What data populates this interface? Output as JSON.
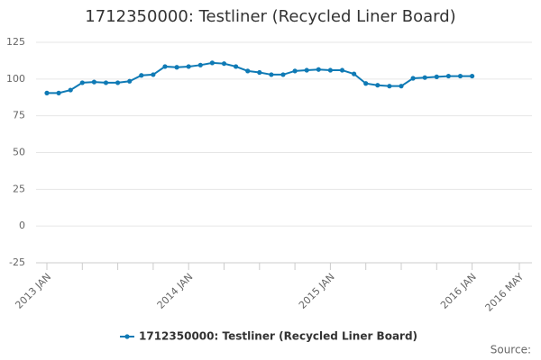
{
  "chart_data": {
    "type": "line",
    "title": "1712350000: Testliner (Recycled Liner Board)",
    "source": "Source:",
    "x": [
      "2013-01",
      "2013-02",
      "2013-03",
      "2013-04",
      "2013-05",
      "2013-06",
      "2013-07",
      "2013-08",
      "2013-09",
      "2013-10",
      "2013-11",
      "2013-12",
      "2014-01",
      "2014-02",
      "2014-03",
      "2014-04",
      "2014-05",
      "2014-06",
      "2014-07",
      "2014-08",
      "2014-09",
      "2014-10",
      "2014-11",
      "2014-12",
      "2015-01",
      "2015-02",
      "2015-03",
      "2015-04",
      "2015-05",
      "2015-06",
      "2015-07",
      "2015-08",
      "2015-09",
      "2015-10",
      "2015-11",
      "2015-12",
      "2016-01"
    ],
    "series": [
      {
        "name": "1712350000: Testliner (Recycled Liner Board)",
        "color": "#0f7ab5",
        "values": [
          90.5,
          90.5,
          92.5,
          97.5,
          98,
          97.5,
          97.5,
          98.5,
          102.5,
          103,
          108.5,
          108,
          108.5,
          109.5,
          111,
          110.5,
          108.5,
          105.5,
          104.5,
          103,
          103,
          105.5,
          106,
          106.5,
          106,
          106,
          103.5,
          97,
          95.8,
          95.2,
          95.2,
          100.5,
          101,
          101.5,
          102,
          102,
          102
        ]
      }
    ],
    "xlim": [
      "2013-01",
      "2016-05"
    ],
    "xticks": [
      {
        "value": "2013-01",
        "label": "2013 JAN"
      },
      {
        "value": "2013-04",
        "label": null
      },
      {
        "value": "2013-07",
        "label": null
      },
      {
        "value": "2013-10",
        "label": null
      },
      {
        "value": "2014-01",
        "label": "2014 JAN"
      },
      {
        "value": "2014-04",
        "label": null
      },
      {
        "value": "2014-07",
        "label": null
      },
      {
        "value": "2014-10",
        "label": null
      },
      {
        "value": "2015-01",
        "label": "2015 JAN"
      },
      {
        "value": "2015-04",
        "label": null
      },
      {
        "value": "2015-07",
        "label": null
      },
      {
        "value": "2015-10",
        "label": null
      },
      {
        "value": "2016-01",
        "label": "2016 JAN"
      },
      {
        "value": "2016-05",
        "label": "2016 MAY"
      }
    ],
    "ylim": [
      -25,
      125
    ],
    "yticks": [
      -25,
      0,
      25,
      50,
      75,
      100,
      125
    ],
    "grid": true
  }
}
